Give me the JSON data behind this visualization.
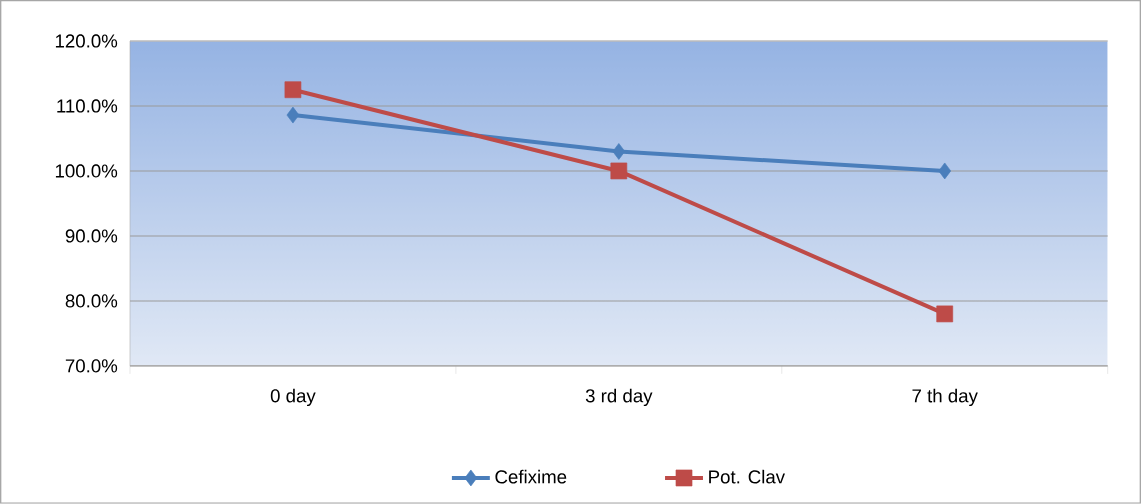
{
  "chart_data": {
    "type": "line",
    "categories": [
      "0 day",
      "3 rd day",
      "7 th day"
    ],
    "series": [
      {
        "name": "Cefixime",
        "color": "#4a7ebb",
        "marker": "diamond",
        "values": [
          108.6,
          103.0,
          100.0
        ]
      },
      {
        "name": "Pot. Clav",
        "color": "#be4b48",
        "marker": "square",
        "values": [
          112.5,
          100.0,
          78.0
        ]
      }
    ],
    "ylim": [
      70,
      120
    ],
    "yticks": [
      {
        "value": 70,
        "label": "70.0%"
      },
      {
        "value": 80,
        "label": "80.0%"
      },
      {
        "value": 90,
        "label": "90.0%"
      },
      {
        "value": 100,
        "label": "100.0%"
      },
      {
        "value": 110,
        "label": "110.0%"
      },
      {
        "value": 120,
        "label": "120.0%"
      }
    ],
    "grid": "y",
    "legend": "bottom",
    "line_style": "solid"
  }
}
